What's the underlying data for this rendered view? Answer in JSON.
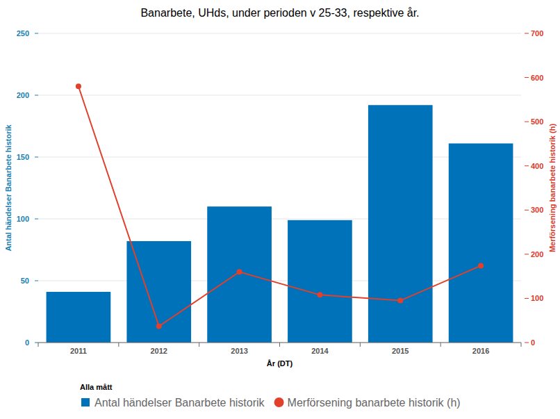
{
  "chart_data": {
    "type": "bar",
    "title": "Banarbete, UHds, under perioden v 25-33, respektive år.",
    "x_label": "År (DT)",
    "y_label": "Antal händelser Banarbete historik",
    "y2_label": "Merförsening banarbete historik (h)",
    "legend_title": "Alla mått",
    "legend": "bottom",
    "grid": true,
    "categories": [
      "2011",
      "2012",
      "2013",
      "2014",
      "2015",
      "2016"
    ],
    "ylim": [
      0,
      250
    ],
    "yticks": [
      0,
      50,
      100,
      150,
      200,
      250
    ],
    "y2lim": [
      0,
      700
    ],
    "y2ticks": [
      0,
      100,
      200,
      300,
      400,
      500,
      600,
      700
    ],
    "series": [
      {
        "name": "Antal händelser Banarbete historik",
        "type": "bar",
        "color": "#0072b9",
        "values": [
          41,
          82,
          110,
          99,
          192,
          161
        ]
      },
      {
        "name": "Merförsening banarbete historik (h)",
        "type": "line",
        "axis": "y2",
        "color": "#e0402c",
        "marker": "circle",
        "values": [
          580,
          37,
          160,
          108,
          95,
          174
        ]
      }
    ]
  }
}
